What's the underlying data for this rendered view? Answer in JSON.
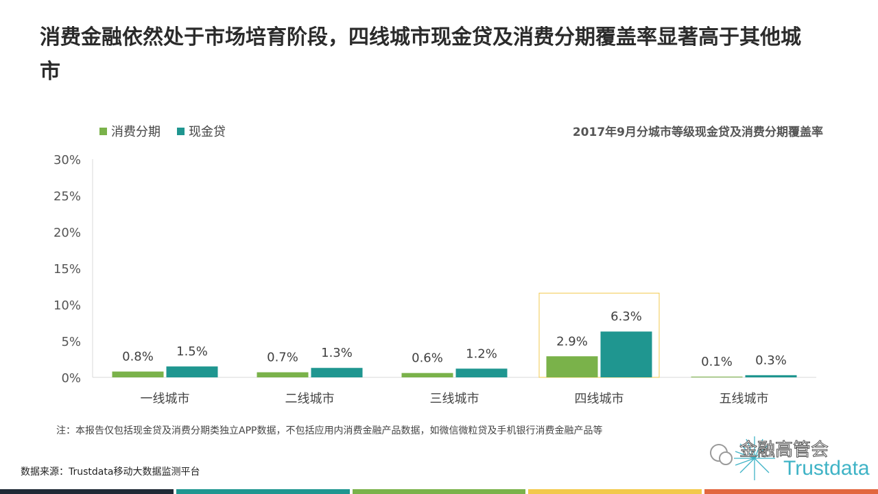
{
  "title": "消费金融依然处于市场培育阶段，四线城市现金贷及消费分期覆盖率显著高于其他城市",
  "chart_data": {
    "type": "bar",
    "title": "2017年9月分城市等级现金贷及消费分期覆盖率",
    "categories": [
      "一线城市",
      "二线城市",
      "三线城市",
      "四线城市",
      "五线城市"
    ],
    "series": [
      {
        "name": "消费分期",
        "color": "#7ab24a",
        "values": [
          0.8,
          0.7,
          0.6,
          2.9,
          0.1
        ],
        "labels": [
          "0.8%",
          "0.7%",
          "0.6%",
          "2.9%",
          "0.1%"
        ]
      },
      {
        "name": "现金贷",
        "color": "#1f9690",
        "values": [
          1.5,
          1.3,
          1.2,
          6.3,
          0.3
        ],
        "labels": [
          "1.5%",
          "1.3%",
          "1.2%",
          "6.3%",
          "0.3%"
        ]
      }
    ],
    "ylim": [
      0,
      30
    ],
    "yticks": [
      "0%",
      "5%",
      "10%",
      "15%",
      "20%",
      "25%",
      "30%"
    ],
    "highlight_category": "四线城市",
    "legend_position": "top-left",
    "grid": false
  },
  "note": "注：本报告仅包括现金贷及消费分期类独立APP数据，不包括应用内消费金融产品数据，如微信微粒贷及手机银行消费金融产品等",
  "source": "数据来源：Trustdata移动大数据监测平台",
  "logo": {
    "line1": "金融高管会",
    "line2": "Trustdata"
  },
  "bottom_bar_colors": [
    "#1f2a36",
    "#1f9690",
    "#7ab24a",
    "#f2c94c",
    "#e2673f"
  ]
}
